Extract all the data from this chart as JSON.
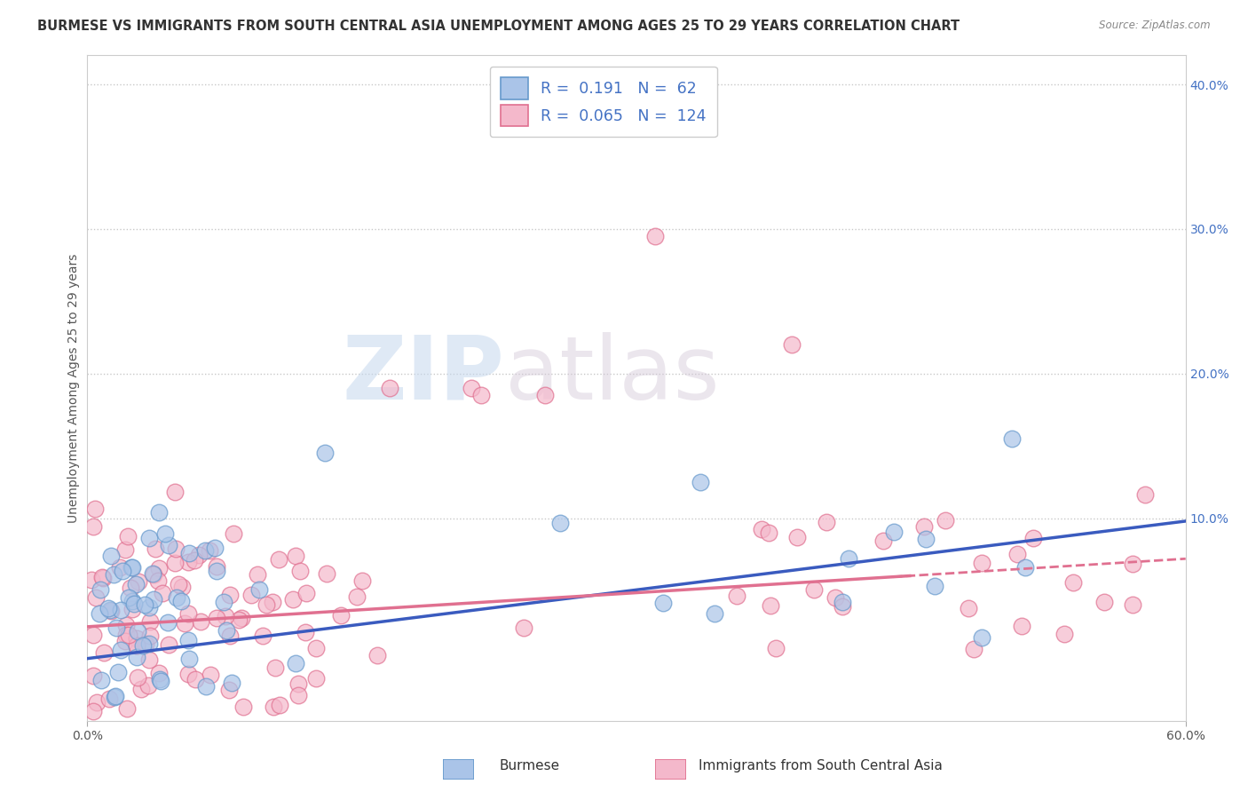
{
  "title": "BURMESE VS IMMIGRANTS FROM SOUTH CENTRAL ASIA UNEMPLOYMENT AMONG AGES 25 TO 29 YEARS CORRELATION CHART",
  "source": "Source: ZipAtlas.com",
  "ylabel": "Unemployment Among Ages 25 to 29 years",
  "x_min": 0.0,
  "x_max": 0.6,
  "y_min": -0.04,
  "y_max": 0.42,
  "x_ticks": [
    0.0,
    0.6
  ],
  "x_tick_labels": [
    "0.0%",
    "60.0%"
  ],
  "y_ticks": [
    0.0,
    0.1,
    0.2,
    0.3,
    0.4
  ],
  "y_tick_labels": [
    "",
    "10.0%",
    "20.0%",
    "30.0%",
    "40.0%"
  ],
  "burmese_color": "#aac4e8",
  "burmese_edge_color": "#6699cc",
  "pink_color": "#f4b8cb",
  "pink_edge_color": "#e07090",
  "burmese_R": 0.191,
  "burmese_N": 62,
  "pink_R": 0.065,
  "pink_N": 124,
  "blue_line_color": "#3a5bbf",
  "pink_line_color": "#e07090",
  "background_color": "#ffffff",
  "grid_color": "#c8c8c8",
  "watermark_zip": "ZIP",
  "watermark_atlas": "atlas",
  "legend_labels": [
    "Burmese",
    "Immigrants from South Central Asia"
  ],
  "title_fontsize": 10.5,
  "axis_label_fontsize": 10,
  "tick_label_fontsize": 10,
  "right_tick_color": "#4472c4",
  "burmese_seed": 42,
  "pink_seed": 7
}
